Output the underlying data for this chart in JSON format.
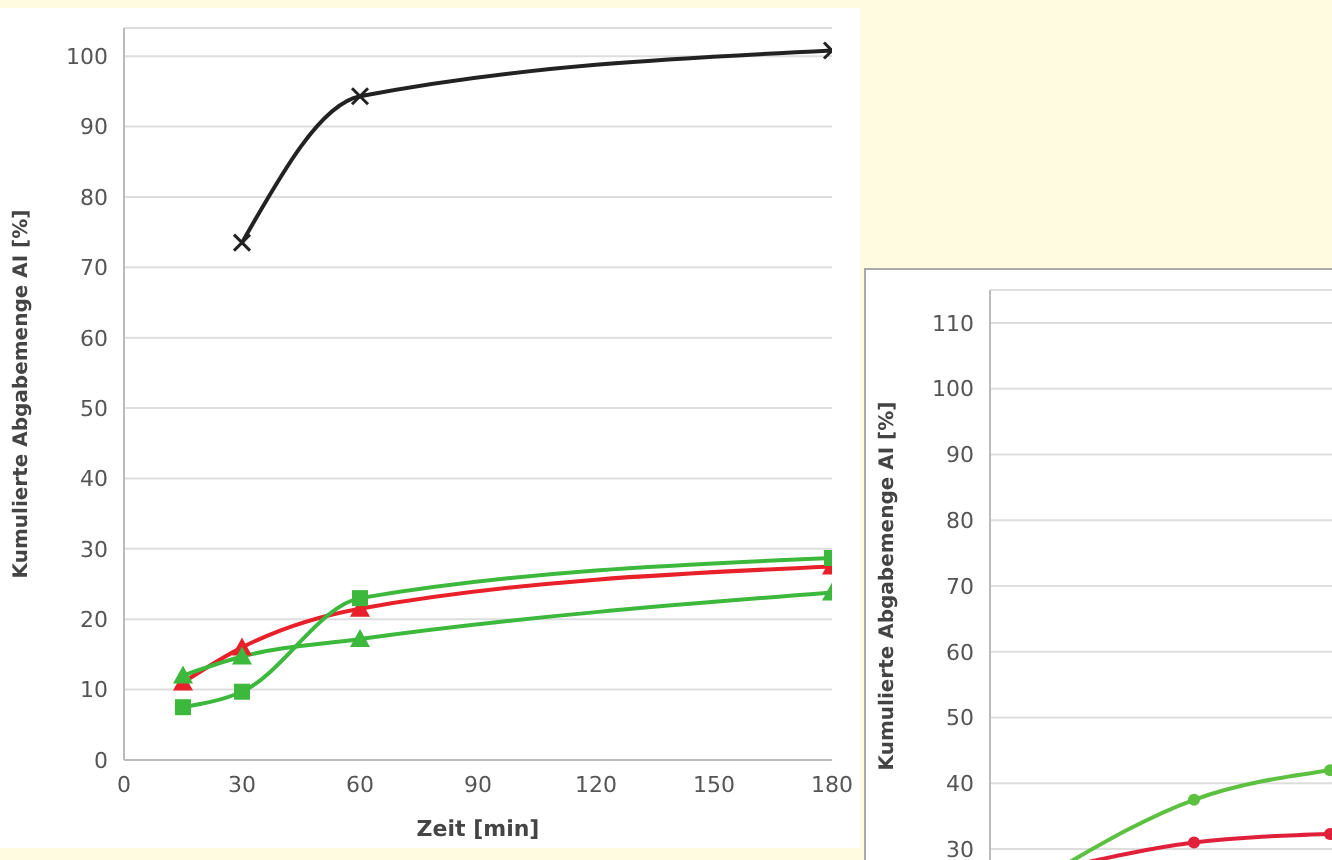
{
  "chart_data": [
    {
      "type": "line",
      "xlabel": "Zeit [min]",
      "ylabel": "Kumulierte Abgabemenge AI [%]",
      "xlim": [
        0,
        180
      ],
      "xticks": [
        0,
        30,
        60,
        90,
        120,
        150,
        180
      ],
      "ylim": [
        0,
        104
      ],
      "yticks": [
        0,
        10,
        20,
        30,
        40,
        50,
        60,
        70,
        80,
        90,
        100
      ],
      "grid": "y",
      "series": [
        {
          "color": "#222222",
          "marker": "cross",
          "x": [
            30,
            60,
            180
          ],
          "values": [
            73.5,
            94.3,
            100.8
          ]
        },
        {
          "color": "#e8202a",
          "marker": "triangle",
          "x": [
            15,
            30,
            60,
            180
          ],
          "values": [
            11,
            16,
            21.5,
            27.5
          ]
        },
        {
          "color": "#3cb83c",
          "marker": "square",
          "x": [
            15,
            30,
            60,
            180
          ],
          "values": [
            7.5,
            9.7,
            23,
            28.7
          ]
        },
        {
          "color": "#3cb83c",
          "marker": "triangle",
          "x": [
            15,
            30,
            60,
            180
          ],
          "values": [
            12,
            14.7,
            17.2,
            23.8
          ]
        }
      ]
    },
    {
      "type": "line",
      "ylabel": "Kumulierte Abgabemenge AI [%]",
      "categories": [
        null,
        null,
        null
      ],
      "ylim": [
        25,
        115
      ],
      "yticks": [
        30,
        40,
        50,
        60,
        70,
        80,
        90,
        100,
        110
      ],
      "grid": "y",
      "tick_labels": "y",
      "marker": "circle",
      "series": [
        {
          "color": "#5cc040",
          "values": [
            27,
            37.5,
            42
          ]
        },
        {
          "color": "#e0203a",
          "values": [
            27,
            31,
            32.3
          ]
        }
      ]
    }
  ]
}
